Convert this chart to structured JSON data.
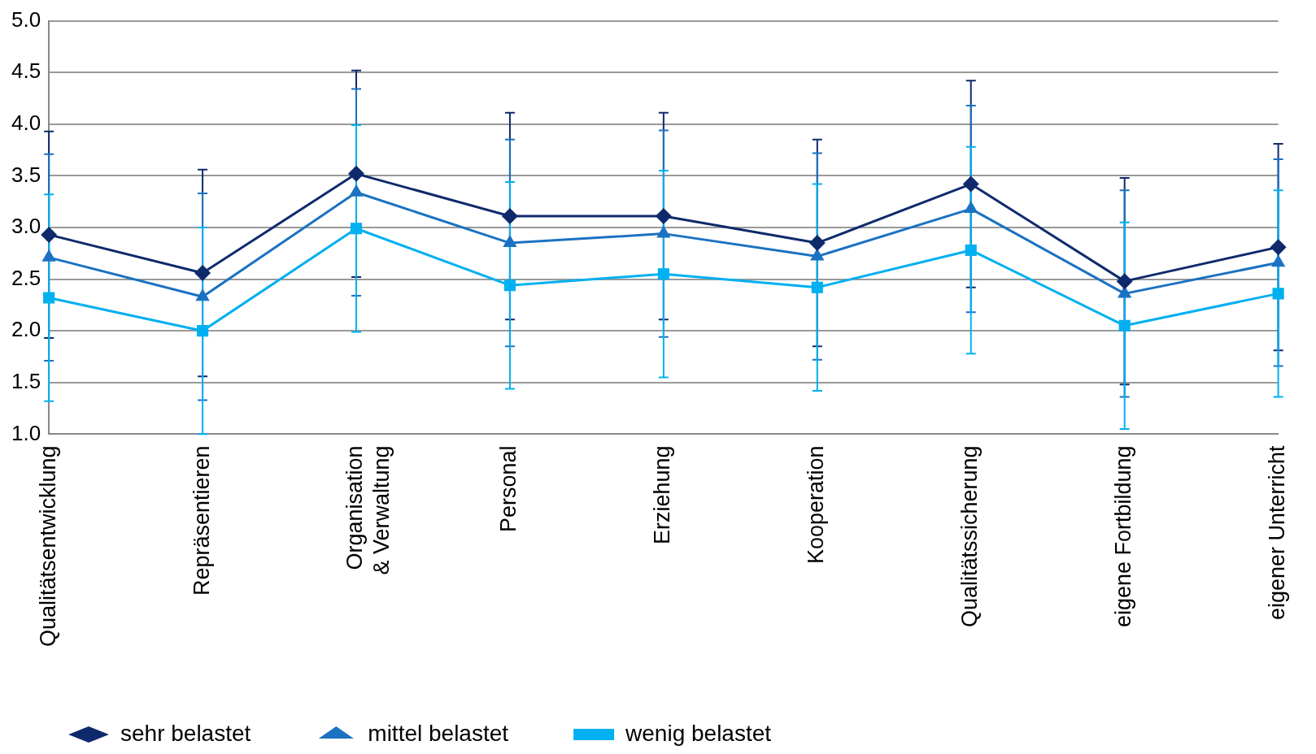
{
  "chart_data": {
    "type": "line",
    "categories": [
      "Qualitätsentwicklung",
      "Repräsentieren",
      "Organisation\n& Verwaltung",
      "Personal",
      "Erziehung",
      "Kooperation",
      "Qualitätssicherung",
      "eigene Fortbildung",
      "eigener Unterricht"
    ],
    "series": [
      {
        "name": "sehr belastet",
        "color": "#0f2a6c",
        "marker": "diamond",
        "values": [
          2.93,
          2.56,
          3.52,
          3.11,
          3.11,
          2.85,
          3.42,
          2.48,
          2.81
        ],
        "errors": [
          1,
          1,
          1,
          1,
          1,
          1,
          1,
          1,
          1
        ]
      },
      {
        "name": "mittel belastet",
        "color": "#1b72c2",
        "marker": "triangle",
        "values": [
          2.71,
          2.33,
          3.34,
          2.85,
          2.94,
          2.72,
          3.18,
          2.36,
          2.66
        ],
        "errors": [
          1,
          1,
          1,
          1,
          1,
          1,
          1,
          1,
          1
        ]
      },
      {
        "name": "wenig belastet",
        "color": "#00b0f0",
        "marker": "square",
        "values": [
          2.32,
          2.0,
          2.99,
          2.44,
          2.55,
          2.42,
          2.78,
          2.05,
          2.36
        ],
        "errors": [
          1,
          1,
          1,
          1,
          1,
          1,
          1,
          1,
          1
        ]
      }
    ],
    "ylim": [
      1,
      5
    ],
    "yticks": [
      {
        "value": 1,
        "label": "1.0"
      },
      {
        "value": 1.5,
        "label": "1.5"
      },
      {
        "value": 2,
        "label": "2.0"
      },
      {
        "value": 2.5,
        "label": "2.5"
      },
      {
        "value": 3,
        "label": "3.0"
      },
      {
        "value": 3.5,
        "label": "3.5"
      },
      {
        "value": 4,
        "label": "4.0"
      },
      {
        "value": 4.5,
        "label": "4.5"
      },
      {
        "value": 5,
        "label": "5.0"
      }
    ],
    "grid": "y",
    "legend": "bottom left",
    "line_style": "solid"
  }
}
